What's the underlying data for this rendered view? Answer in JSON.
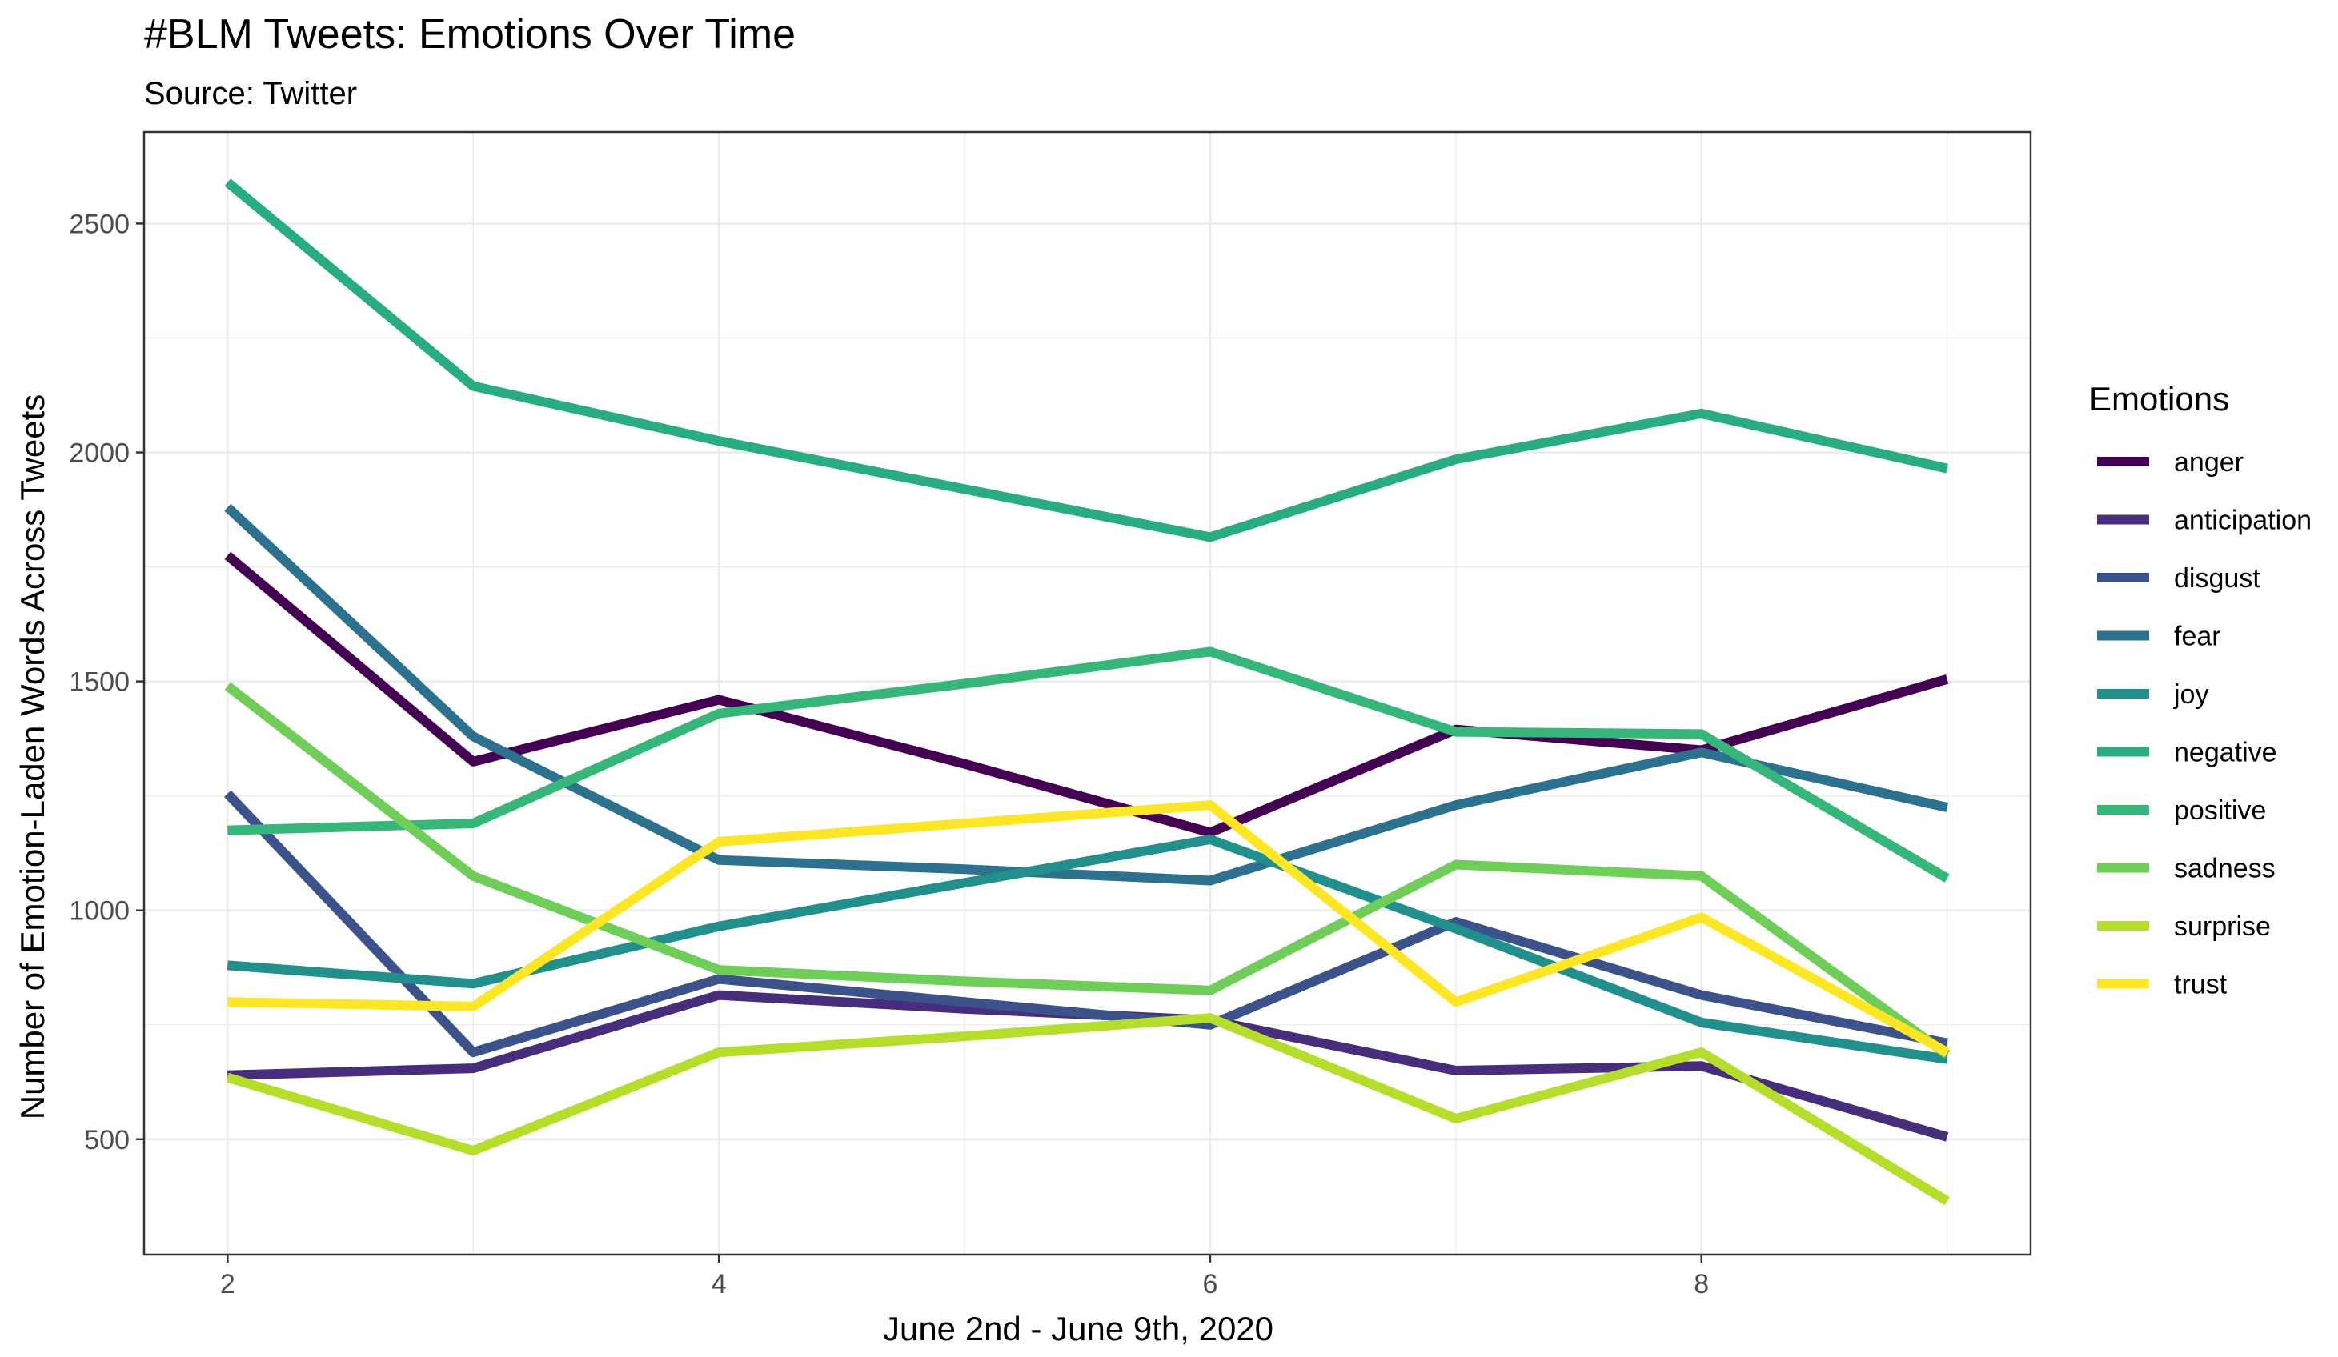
{
  "chart_data": {
    "type": "line",
    "title": "#BLM Tweets: Emotions Over Time",
    "subtitle": "Source: Twitter",
    "xlabel": "June 2nd - June 9th, 2020",
    "ylabel": "Number of Emotion-Laden Words Across Tweets",
    "x": [
      2,
      3,
      4,
      5,
      6,
      7,
      8,
      9
    ],
    "xlim": [
      1.66,
      9.34
    ],
    "ylim": [
      248,
      2700
    ],
    "x_ticks": [
      2,
      4,
      6,
      8
    ],
    "y_ticks": [
      500,
      1000,
      1500,
      2000,
      2500
    ],
    "legend_title": "Emotions",
    "legend_position": "right",
    "grid": true,
    "series": [
      {
        "name": "anger",
        "color": "#440154",
        "values": [
          1775,
          1325,
          1460,
          1320,
          1170,
          1395,
          1350,
          1505
        ]
      },
      {
        "name": "anticipation",
        "color": "#472d7b",
        "values": [
          640,
          655,
          815,
          785,
          760,
          650,
          660,
          505
        ]
      },
      {
        "name": "disgust",
        "color": "#3b528b",
        "values": [
          1255,
          690,
          850,
          800,
          750,
          975,
          815,
          710
        ]
      },
      {
        "name": "fear",
        "color": "#2c728e",
        "values": [
          1880,
          1380,
          1110,
          1090,
          1065,
          1230,
          1345,
          1225
        ]
      },
      {
        "name": "joy",
        "color": "#21908c",
        "values": [
          880,
          840,
          965,
          1060,
          1155,
          960,
          755,
          675
        ]
      },
      {
        "name": "negative",
        "color": "#27ad81",
        "values": [
          2590,
          2145,
          2025,
          1920,
          1815,
          1985,
          2085,
          1965
        ]
      },
      {
        "name": "positive",
        "color": "#35b779",
        "values": [
          1175,
          1190,
          1430,
          1495,
          1565,
          1390,
          1385,
          1070
        ]
      },
      {
        "name": "sadness",
        "color": "#6ece58",
        "values": [
          1490,
          1075,
          870,
          845,
          825,
          1100,
          1075,
          685
        ]
      },
      {
        "name": "surprise",
        "color": "#b5de2b",
        "values": [
          635,
          475,
          690,
          725,
          765,
          545,
          690,
          365
        ]
      },
      {
        "name": "trust",
        "color": "#fde725",
        "values": [
          800,
          790,
          1150,
          1190,
          1230,
          800,
          985,
          690
        ]
      }
    ]
  }
}
